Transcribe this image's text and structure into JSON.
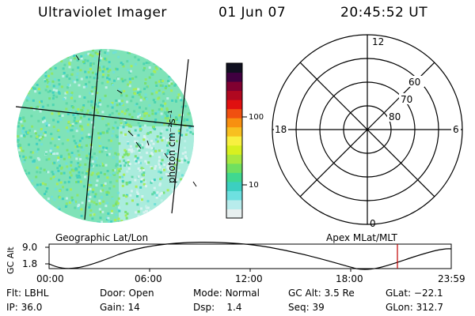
{
  "header": {
    "instrument": "Ultraviolet Imager",
    "date": "01 Jun 07",
    "time": "20:45:52 UT"
  },
  "colorbar": {
    "unit_label": "photon cm⁻²s⁻¹",
    "ticks": [
      "100",
      "10"
    ],
    "colors": [
      "#e8f0f0",
      "#b8ecec",
      "#6ee0e0",
      "#3ccfc0",
      "#40d890",
      "#70e060",
      "#a8e840",
      "#d8f020",
      "#f8f040",
      "#f8c020",
      "#f89010",
      "#f05010",
      "#e01010",
      "#b00820",
      "#800030",
      "#400040",
      "#101020"
    ]
  },
  "polar": {
    "mlt_labels": [
      "12",
      "18",
      "6",
      "0"
    ],
    "lat_labels": [
      "60",
      "70",
      "80"
    ]
  },
  "map": {
    "caption_left": "Geographic Lat/Lon",
    "caption_right": "Apex MLat/MLT"
  },
  "orbit": {
    "ylabel": "GC Alt",
    "yticks": [
      "9.0",
      "1.8"
    ],
    "xticks": [
      "00:00",
      "06:00",
      "12:00",
      "18:00",
      "23:59"
    ],
    "marker_color": "#c00000"
  },
  "status": {
    "row1": [
      {
        "label": "Flt:",
        "value": "LBHL"
      },
      {
        "label": "Door:",
        "value": "Open"
      },
      {
        "label": "Mode:",
        "value": "Normal"
      },
      {
        "label": "GC Alt:",
        "value": "3.5 Re"
      },
      {
        "label": "GLat:",
        "value": "−22.1"
      }
    ],
    "row2": [
      {
        "label": "IP:",
        "value": "36.0"
      },
      {
        "label": "Gain:",
        "value": "14"
      },
      {
        "label": "Dsp:",
        "value": "1.4"
      },
      {
        "label": "Seq:",
        "value": "39"
      },
      {
        "label": "GLon:",
        "value": "312.7"
      }
    ]
  }
}
